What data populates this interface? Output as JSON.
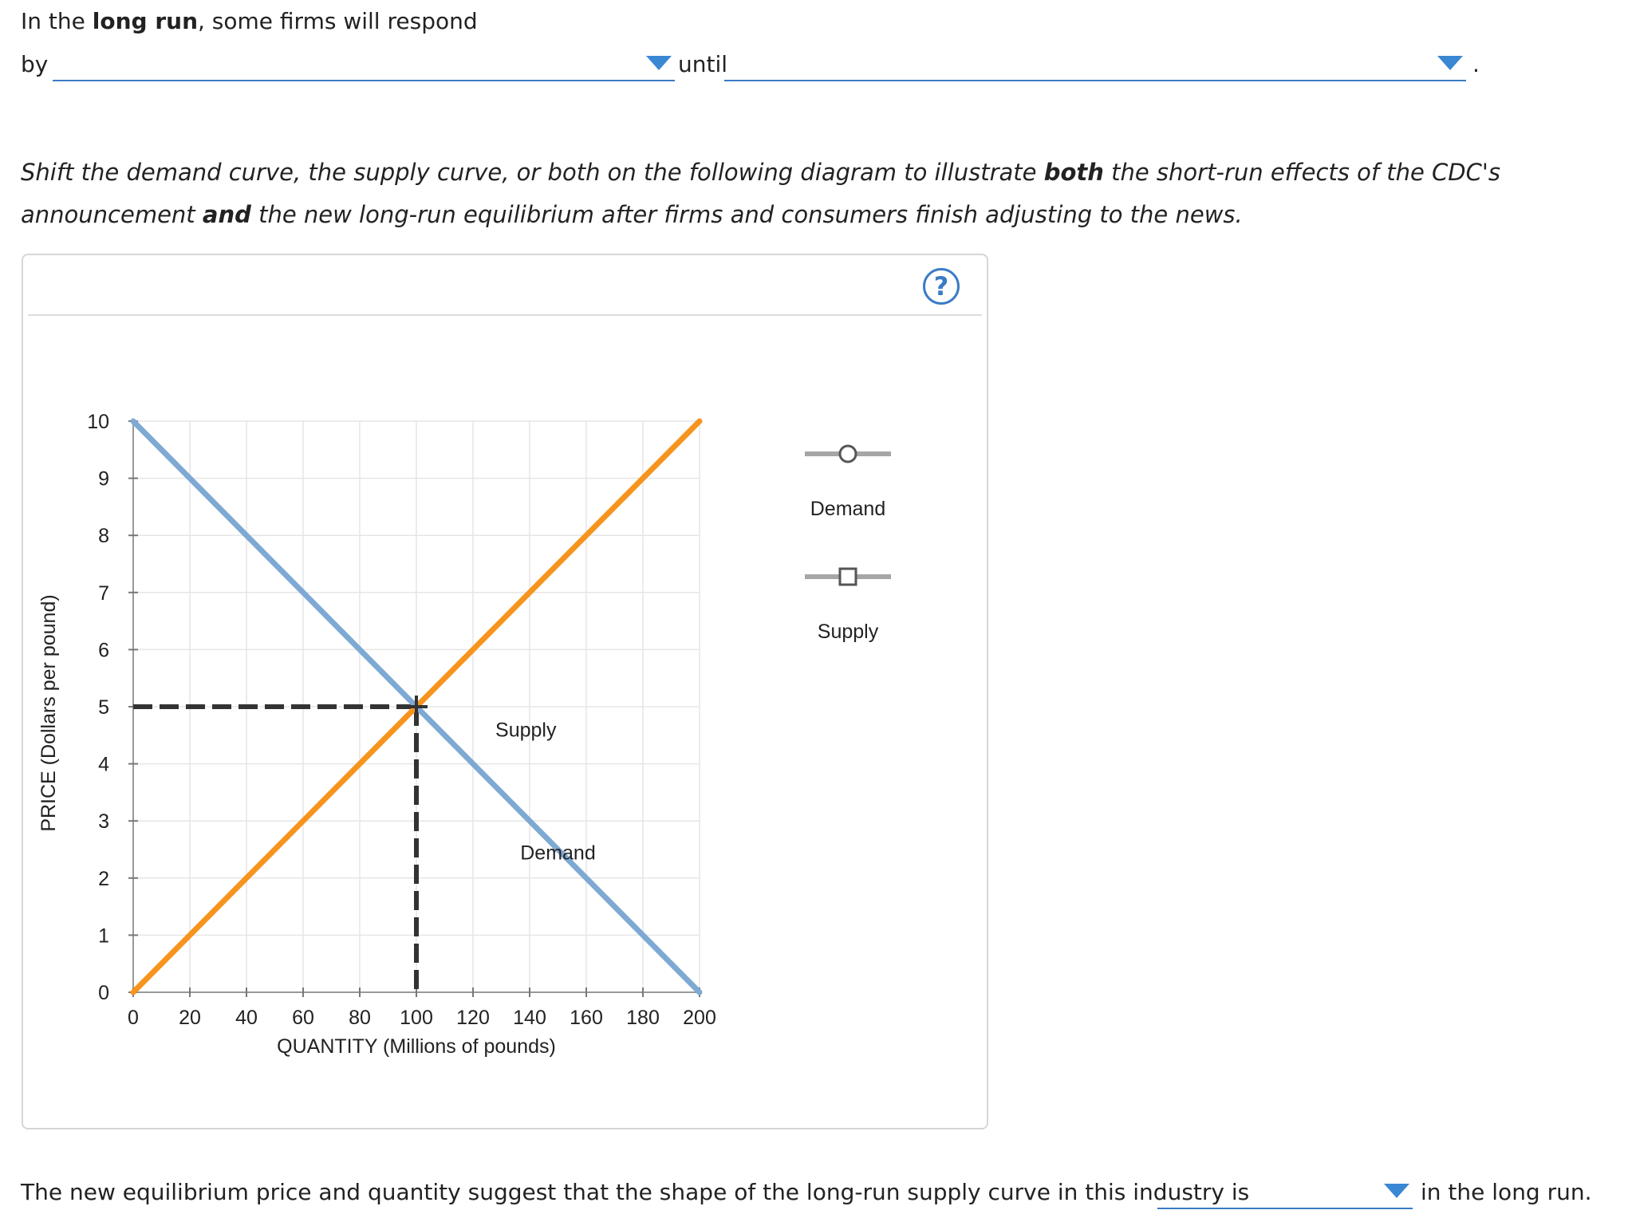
{
  "q1": {
    "line1_pre": "In the ",
    "line1_bold": "long run",
    "line1_post": ", some firms will respond",
    "by_label": "by",
    "until_label": "until",
    "period": ".",
    "dropdown1_value": "",
    "dropdown2_value": ""
  },
  "instructions": {
    "part1": "Shift the demand curve, the supply curve, or both on the following diagram to illustrate ",
    "bold1": "both",
    "part2": " the short-run effects of the CDC's announcement ",
    "bold2": "and",
    "part3": " the new long-run equilibrium after firms and consumers finish adjusting to the news."
  },
  "help_label": "?",
  "legend": {
    "demand_label": "Demand",
    "supply_label": "Supply"
  },
  "chart_data": {
    "type": "line",
    "xlabel": "QUANTITY (Millions of pounds)",
    "ylabel": "PRICE (Dollars per pound)",
    "xlim": [
      0,
      200
    ],
    "ylim": [
      0,
      10
    ],
    "x_ticks": [
      0,
      20,
      40,
      60,
      80,
      100,
      120,
      140,
      160,
      180,
      200
    ],
    "y_ticks": [
      0,
      1,
      2,
      3,
      4,
      5,
      6,
      7,
      8,
      9,
      10
    ],
    "grid": true,
    "series": [
      {
        "name": "Supply",
        "color": "#f7941d",
        "x": [
          0,
          200
        ],
        "y": [
          0,
          10
        ]
      },
      {
        "name": "Demand",
        "color": "#7ea9d3",
        "x": [
          0,
          200
        ],
        "y": [
          10,
          0
        ]
      }
    ],
    "equilibrium": {
      "x": 100,
      "y": 5
    },
    "labels": [
      {
        "text": "Supply",
        "series": "Supply"
      },
      {
        "text": "Demand",
        "series": "Demand"
      }
    ]
  },
  "q3": {
    "text_pre": "The new equilibrium price and quantity suggest that the shape of the long-run supply curve in this industry is",
    "text_post": "in the long run.",
    "dropdown_value": ""
  }
}
